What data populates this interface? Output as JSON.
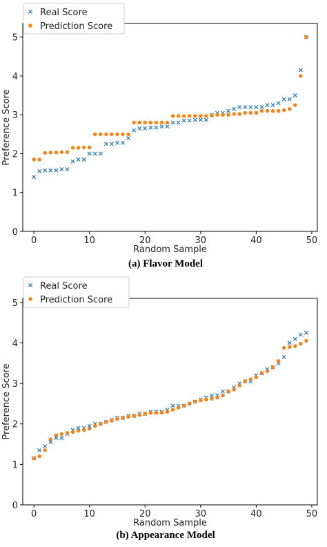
{
  "chart_data": [
    {
      "type": "scatter",
      "caption": "(a) Flavor Model",
      "xlabel": "Random Sample",
      "ylabel": "Preference Score",
      "xlim": [
        -2,
        51
      ],
      "ylim": [
        0,
        5.35
      ],
      "xticks": [
        0,
        10,
        20,
        30,
        40,
        50
      ],
      "yticks": [
        0,
        1,
        2,
        3,
        4,
        5
      ],
      "grid": false,
      "legend": "top-left",
      "series": [
        {
          "name": "Real Score",
          "marker": "x",
          "color": "#1f77b4",
          "x": [
            0,
            1,
            2,
            3,
            4,
            5,
            6,
            7,
            8,
            9,
            10,
            11,
            12,
            13,
            14,
            15,
            16,
            17,
            18,
            19,
            20,
            21,
            22,
            23,
            24,
            25,
            26,
            27,
            28,
            29,
            30,
            31,
            32,
            33,
            34,
            35,
            36,
            37,
            38,
            39,
            40,
            41,
            42,
            43,
            44,
            45,
            46,
            47,
            48,
            49
          ],
          "values": [
            1.4,
            1.55,
            1.57,
            1.57,
            1.57,
            1.6,
            1.6,
            1.8,
            1.85,
            1.85,
            2.0,
            2.0,
            2.0,
            2.25,
            2.25,
            2.28,
            2.28,
            2.4,
            2.6,
            2.65,
            2.65,
            2.67,
            2.67,
            2.7,
            2.7,
            2.8,
            2.8,
            2.85,
            2.85,
            2.87,
            2.87,
            2.87,
            3.0,
            3.05,
            3.05,
            3.1,
            3.15,
            3.2,
            3.2,
            3.2,
            3.2,
            3.2,
            3.25,
            3.25,
            3.3,
            3.4,
            3.4,
            3.5,
            4.15,
            5.0
          ]
        },
        {
          "name": "Prediction Score",
          "marker": "o",
          "color": "#ff7f0e",
          "x": [
            0,
            1,
            2,
            3,
            4,
            5,
            6,
            7,
            8,
            9,
            10,
            11,
            12,
            13,
            14,
            15,
            16,
            17,
            18,
            19,
            20,
            21,
            22,
            23,
            24,
            25,
            26,
            27,
            28,
            29,
            30,
            31,
            32,
            33,
            34,
            35,
            36,
            37,
            38,
            39,
            40,
            41,
            42,
            43,
            44,
            45,
            46,
            47,
            48,
            49
          ],
          "values": [
            1.85,
            1.85,
            2.02,
            2.03,
            2.03,
            2.04,
            2.04,
            2.15,
            2.15,
            2.16,
            2.16,
            2.5,
            2.5,
            2.5,
            2.5,
            2.5,
            2.5,
            2.5,
            2.8,
            2.8,
            2.8,
            2.8,
            2.8,
            2.8,
            2.8,
            2.97,
            2.97,
            2.97,
            2.97,
            2.97,
            2.97,
            2.97,
            2.98,
            3.0,
            3.0,
            3.0,
            3.02,
            3.02,
            3.05,
            3.05,
            3.05,
            3.1,
            3.1,
            3.1,
            3.1,
            3.12,
            3.15,
            3.25,
            4.0,
            5.0
          ]
        }
      ]
    },
    {
      "type": "scatter",
      "caption": "(b) Appearance Model",
      "xlabel": "Random Sample",
      "ylabel": "Preference Score",
      "xlim": [
        -2,
        51
      ],
      "ylim": [
        0,
        5.1
      ],
      "xticks": [
        0,
        10,
        20,
        30,
        40,
        50
      ],
      "yticks": [
        0,
        1,
        2,
        3,
        4,
        5
      ],
      "grid": false,
      "legend": "top-left",
      "series": [
        {
          "name": "Real Score",
          "marker": "x",
          "color": "#1f77b4",
          "x": [
            0,
            1,
            2,
            3,
            4,
            5,
            6,
            7,
            8,
            9,
            10,
            11,
            12,
            13,
            14,
            15,
            16,
            17,
            18,
            19,
            20,
            21,
            22,
            23,
            24,
            25,
            26,
            27,
            28,
            29,
            30,
            31,
            32,
            33,
            34,
            35,
            36,
            37,
            38,
            39,
            40,
            41,
            42,
            43,
            44,
            45,
            46,
            47,
            48,
            49
          ],
          "values": [
            1.15,
            1.35,
            1.45,
            1.55,
            1.65,
            1.65,
            1.75,
            1.85,
            1.9,
            1.9,
            1.95,
            2.0,
            2.0,
            2.05,
            2.1,
            2.15,
            2.15,
            2.2,
            2.2,
            2.25,
            2.25,
            2.3,
            2.3,
            2.3,
            2.35,
            2.45,
            2.45,
            2.45,
            2.5,
            2.55,
            2.6,
            2.65,
            2.7,
            2.7,
            2.8,
            2.8,
            2.9,
            3.0,
            3.05,
            3.05,
            3.2,
            3.25,
            3.35,
            3.4,
            3.5,
            3.65,
            4.0,
            4.1,
            4.2,
            4.25
          ]
        },
        {
          "name": "Prediction Score",
          "marker": "o",
          "color": "#ff7f0e",
          "x": [
            0,
            1,
            2,
            3,
            4,
            5,
            6,
            7,
            8,
            9,
            10,
            11,
            12,
            13,
            14,
            15,
            16,
            17,
            18,
            19,
            20,
            21,
            22,
            23,
            24,
            25,
            26,
            27,
            28,
            29,
            30,
            31,
            32,
            33,
            34,
            35,
            36,
            37,
            38,
            39,
            40,
            41,
            42,
            43,
            44,
            45,
            46,
            47,
            48,
            49
          ],
          "values": [
            1.15,
            1.2,
            1.35,
            1.62,
            1.72,
            1.75,
            1.78,
            1.8,
            1.83,
            1.85,
            1.88,
            1.95,
            2.0,
            2.05,
            2.08,
            2.12,
            2.15,
            2.18,
            2.2,
            2.22,
            2.25,
            2.27,
            2.27,
            2.28,
            2.3,
            2.35,
            2.4,
            2.45,
            2.5,
            2.55,
            2.58,
            2.6,
            2.62,
            2.65,
            2.7,
            2.8,
            2.85,
            2.95,
            3.05,
            3.1,
            3.15,
            3.25,
            3.3,
            3.4,
            3.55,
            3.88,
            3.9,
            3.92,
            3.98,
            4.05
          ]
        }
      ]
    }
  ]
}
